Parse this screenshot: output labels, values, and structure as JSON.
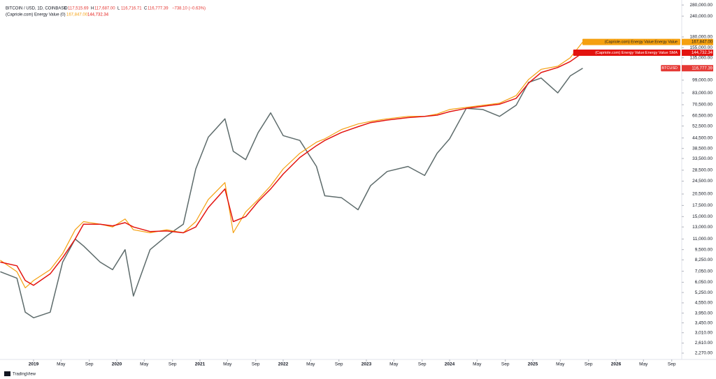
{
  "header": {
    "symbol": "BITCOIN / USD, 1D, COINBASE",
    "ohlc": [
      {
        "key": "O",
        "value": "117,515.69"
      },
      {
        "key": "H",
        "value": "117,687.00"
      },
      {
        "key": "L",
        "value": "116,716.71"
      },
      {
        "key": "C",
        "value": "116,777.39"
      }
    ],
    "change": "−738.10 (−0.63%)",
    "indicator": "(Capriole.com) Energy Value (0)",
    "indicator_values": [
      "167,847.00",
      "144,732.34"
    ]
  },
  "footer": "TradingView",
  "chart_data": {
    "type": "line",
    "log_scale": true,
    "x": [
      2018.6,
      2018.8,
      2018.9,
      2019.0,
      2019.2,
      2019.35,
      2019.5,
      2019.6,
      2019.8,
      2019.95,
      2020.1,
      2020.2,
      2020.4,
      2020.6,
      2020.8,
      2020.95,
      2021.1,
      2021.3,
      2021.4,
      2021.55,
      2021.7,
      2021.85,
      2022.0,
      2022.2,
      2022.4,
      2022.5,
      2022.7,
      2022.9,
      2023.05,
      2023.25,
      2023.5,
      2023.7,
      2023.85,
      2024.0,
      2024.2,
      2024.4,
      2024.6,
      2024.8,
      2024.95,
      2025.1,
      2025.3,
      2025.45,
      2025.6
    ],
    "series": [
      {
        "name": "BTCUSD",
        "color": "#5d6b6b",
        "last_value_label": "116,777.39",
        "label_color": "#e53935",
        "values": [
          7000,
          6400,
          4000,
          3700,
          4000,
          8000,
          11000,
          10000,
          8000,
          7200,
          9500,
          5000,
          9500,
          11500,
          13500,
          29000,
          45000,
          58000,
          37000,
          33000,
          48000,
          63000,
          46000,
          43000,
          30000,
          20000,
          19500,
          16500,
          23000,
          28000,
          30000,
          26500,
          36000,
          44000,
          67000,
          66000,
          60000,
          70000,
          96000,
          102000,
          83000,
          105000,
          116777.39
        ]
      },
      {
        "name": "(Capriole.com) Energy Value:Energy Value",
        "color": "#f5a00f",
        "last_value_label": "167,847.00",
        "label_color": "#f5a00f",
        "values": [
          8200,
          7000,
          5600,
          6200,
          7200,
          9000,
          12500,
          14000,
          13500,
          13000,
          14500,
          12500,
          12000,
          12500,
          12000,
          14000,
          19000,
          24000,
          12000,
          16000,
          19000,
          23000,
          29000,
          36000,
          42000,
          44000,
          50000,
          54000,
          56000,
          58000,
          60000,
          60000,
          62000,
          66000,
          68000,
          70000,
          72000,
          80000,
          100000,
          115000,
          120000,
          135000,
          167847
        ]
      },
      {
        "name": "(Capriole.com) Energy Value:Energy Value SMA",
        "color": "#e3130f",
        "last_value_label": "144,732.34",
        "label_color": "#e3130f",
        "values": [
          8000,
          7600,
          6200,
          5800,
          6800,
          8500,
          11000,
          13500,
          13500,
          13200,
          13800,
          13000,
          12200,
          12300,
          12000,
          13000,
          17000,
          22000,
          14000,
          15000,
          18500,
          22000,
          27000,
          34000,
          40000,
          43000,
          48000,
          52000,
          55000,
          57000,
          59000,
          60000,
          61000,
          64000,
          67000,
          69000,
          71000,
          77000,
          95000,
          110000,
          118000,
          128000,
          144732.34
        ]
      }
    ],
    "xlim": [
      2018.597,
      2026.79
    ],
    "xticks": [
      2019,
      {
        "value": 2019.33,
        "label": "May"
      },
      {
        "value": 2019.67,
        "label": "Sep"
      },
      2020,
      {
        "value": 2020.33,
        "label": "May"
      },
      {
        "value": 2020.67,
        "label": "Sep"
      },
      2021,
      {
        "value": 2021.33,
        "label": "May"
      },
      {
        "value": 2021.67,
        "label": "Sep"
      },
      2022,
      {
        "value": 2022.33,
        "label": "May"
      },
      {
        "value": 2022.67,
        "label": "Sep"
      },
      2023,
      {
        "value": 2023.33,
        "label": "May"
      },
      {
        "value": 2023.67,
        "label": "Sep"
      },
      2024,
      {
        "value": 2024.33,
        "label": "May"
      },
      {
        "value": 2024.67,
        "label": "Sep"
      },
      2025,
      {
        "value": 2025.33,
        "label": "May"
      },
      {
        "value": 2025.67,
        "label": "Sep"
      },
      2026,
      {
        "value": 2026.33,
        "label": "May"
      },
      {
        "value": 2026.67,
        "label": "Sep"
      }
    ],
    "ylim": [
      2080,
      300000
    ],
    "yticks": [
      {
        "value": 280000,
        "label": "280,000.00"
      },
      {
        "value": 240000,
        "label": "240,000.00"
      },
      {
        "value": 180000,
        "label": "180,000.00"
      },
      {
        "value": 155000,
        "label": "155,000.00"
      },
      {
        "value": 135000,
        "label": "135,000.00"
      },
      {
        "value": 99000,
        "label": "99,000.00"
      },
      {
        "value": 83000,
        "label": "83,000.00"
      },
      {
        "value": 70500,
        "label": "70,500.00"
      },
      {
        "value": 60500,
        "label": "60,500.00"
      },
      {
        "value": 52500,
        "label": "52,500.00"
      },
      {
        "value": 44500,
        "label": "44,500.00"
      },
      {
        "value": 38500,
        "label": "38,500.00"
      },
      {
        "value": 33500,
        "label": "33,500.00"
      },
      {
        "value": 28500,
        "label": "28,500.00"
      },
      {
        "value": 24500,
        "label": "24,500.00"
      },
      {
        "value": 20500,
        "label": "20,500.00"
      },
      {
        "value": 17500,
        "label": "17,500.00"
      },
      {
        "value": 15000,
        "label": "15,000.00"
      },
      {
        "value": 13000,
        "label": "13,000.00"
      },
      {
        "value": 11000,
        "label": "11,000.00"
      },
      {
        "value": 9500,
        "label": "9,500.00"
      },
      {
        "value": 8250,
        "label": "8,250.00"
      },
      {
        "value": 7050,
        "label": "7,050.00"
      },
      {
        "value": 6050,
        "label": "6,050.00"
      },
      {
        "value": 5250,
        "label": "5,250.00"
      },
      {
        "value": 4550,
        "label": "4,550.00"
      },
      {
        "value": 3950,
        "label": "3,950.00"
      },
      {
        "value": 3450,
        "label": "3,450.00"
      },
      {
        "value": 3010,
        "label": "3,010.00"
      },
      {
        "value": 2610,
        "label": "2,610.00"
      },
      {
        "value": 2270,
        "label": "2,270.00"
      }
    ],
    "grid": false
  }
}
